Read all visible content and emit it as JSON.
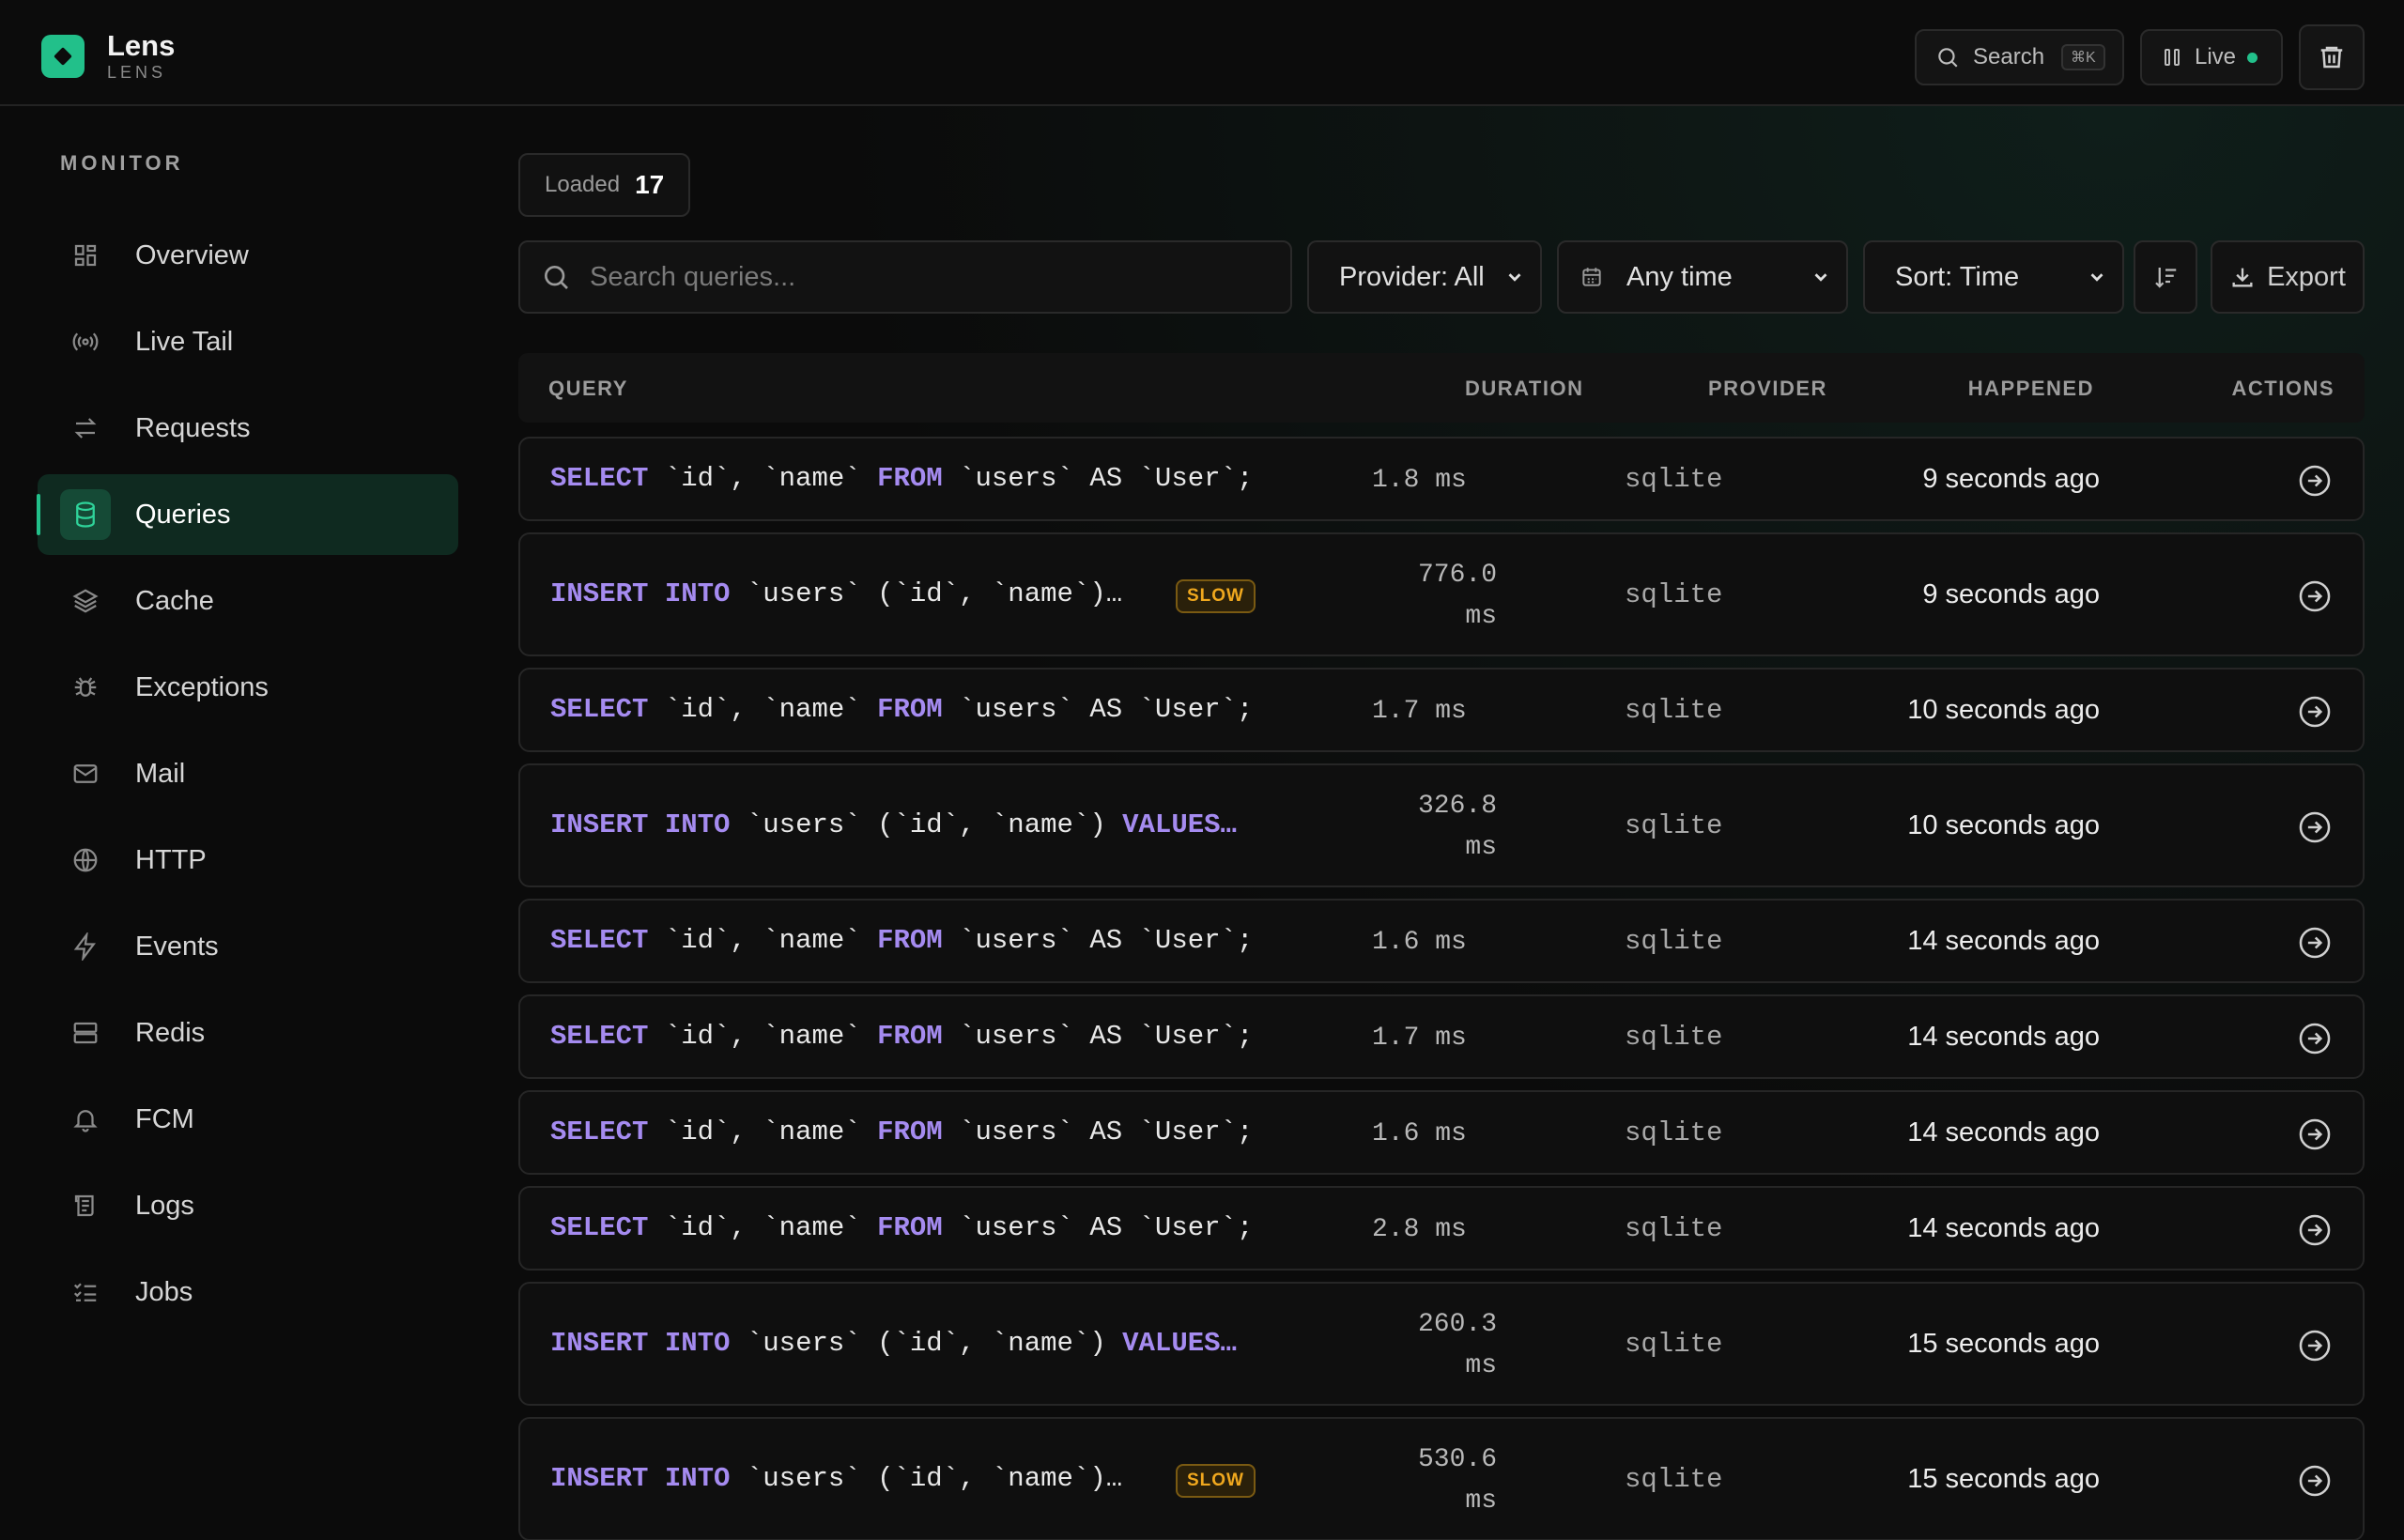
{
  "app": {
    "name": "Lens",
    "subtitle": "LENS"
  },
  "header": {
    "search_label": "Search",
    "search_shortcut": "⌘K",
    "live_label": "Live",
    "live_color": "#22c08a"
  },
  "sidebar": {
    "section_label": "MONITOR",
    "items": [
      {
        "label": "Overview",
        "icon": "grid-icon"
      },
      {
        "label": "Live Tail",
        "icon": "broadcast-icon"
      },
      {
        "label": "Requests",
        "icon": "arrows-icon"
      },
      {
        "label": "Queries",
        "icon": "database-icon",
        "active": true
      },
      {
        "label": "Cache",
        "icon": "layers-icon"
      },
      {
        "label": "Exceptions",
        "icon": "bug-icon"
      },
      {
        "label": "Mail",
        "icon": "mail-icon"
      },
      {
        "label": "HTTP",
        "icon": "globe-icon"
      },
      {
        "label": "Events",
        "icon": "bolt-icon"
      },
      {
        "label": "Redis",
        "icon": "server-icon"
      },
      {
        "label": "FCM",
        "icon": "bell-icon"
      },
      {
        "label": "Logs",
        "icon": "logs-icon"
      },
      {
        "label": "Jobs",
        "icon": "checklist-icon"
      }
    ]
  },
  "main": {
    "loaded_label": "Loaded",
    "loaded_count": "17",
    "search_placeholder": "Search queries...",
    "provider_filter": "Provider: All",
    "time_filter": "Any time",
    "sort_filter": "Sort: Time",
    "export_label": "Export"
  },
  "table": {
    "columns": [
      "QUERY",
      "DURATION",
      "PROVIDER",
      "HAPPENED",
      "ACTIONS"
    ],
    "rows": [
      {
        "type": "select",
        "duration": "1.8 ms",
        "provider": "sqlite",
        "happened": "9 seconds ago"
      },
      {
        "type": "insert_short",
        "slow": "SLOW",
        "duration_value": "776.0",
        "duration_unit": "ms",
        "provider": "sqlite",
        "happened": "9 seconds ago"
      },
      {
        "type": "select",
        "duration": "1.7 ms",
        "provider": "sqlite",
        "happened": "10 seconds ago"
      },
      {
        "type": "insert_long",
        "duration_value": "326.8",
        "duration_unit": "ms",
        "provider": "sqlite",
        "happened": "10 seconds ago"
      },
      {
        "type": "select",
        "duration": "1.6 ms",
        "provider": "sqlite",
        "happened": "14 seconds ago"
      },
      {
        "type": "select",
        "duration": "1.7 ms",
        "provider": "sqlite",
        "happened": "14 seconds ago"
      },
      {
        "type": "select",
        "duration": "1.6 ms",
        "provider": "sqlite",
        "happened": "14 seconds ago"
      },
      {
        "type": "select",
        "duration": "2.8 ms",
        "provider": "sqlite",
        "happened": "14 seconds ago"
      },
      {
        "type": "insert_long",
        "duration_value": "260.3",
        "duration_unit": "ms",
        "provider": "sqlite",
        "happened": "15 seconds ago"
      },
      {
        "type": "insert_short",
        "slow": "SLOW",
        "duration_value": "530.6",
        "duration_unit": "ms",
        "provider": "sqlite",
        "happened": "15 seconds ago"
      }
    ],
    "query_parts": {
      "select": [
        {
          "t": "SELECT",
          "kw": true
        },
        {
          "t": " `id`, `name` "
        },
        {
          "t": "FROM",
          "kw": true
        },
        {
          "t": " `users` AS `User`;"
        }
      ],
      "insert_short": [
        {
          "t": "INSERT",
          "kw": true
        },
        {
          "t": " "
        },
        {
          "t": "INTO",
          "kw": true
        },
        {
          "t": " `users` (`id`, `name`)…"
        }
      ],
      "insert_long": [
        {
          "t": "INSERT",
          "kw": true
        },
        {
          "t": " "
        },
        {
          "t": "INTO",
          "kw": true
        },
        {
          "t": " `users` (`id`, `name`) "
        },
        {
          "t": "VALUES…",
          "kw": true
        }
      ]
    }
  }
}
